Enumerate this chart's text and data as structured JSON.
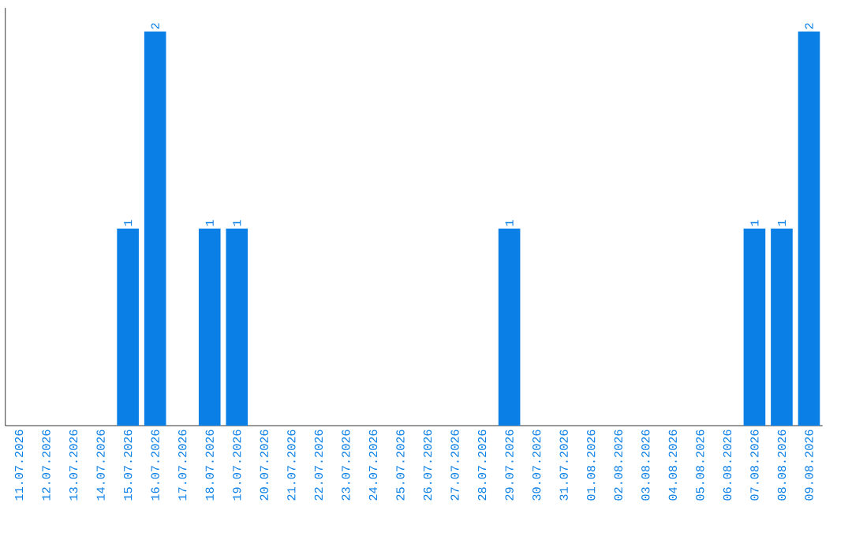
{
  "chart_data": {
    "type": "bar",
    "categories": [
      "11.07.2026",
      "12.07.2026",
      "13.07.2026",
      "14.07.2026",
      "15.07.2026",
      "16.07.2026",
      "17.07.2026",
      "18.07.2026",
      "19.07.2026",
      "20.07.2026",
      "21.07.2026",
      "22.07.2026",
      "23.07.2026",
      "24.07.2026",
      "25.07.2026",
      "26.07.2026",
      "27.07.2026",
      "28.07.2026",
      "29.07.2026",
      "30.07.2026",
      "31.07.2026",
      "01.08.2026",
      "02.08.2026",
      "03.08.2026",
      "04.08.2026",
      "05.08.2026",
      "06.08.2026",
      "07.08.2026",
      "08.08.2026",
      "09.08.2026"
    ],
    "values": [
      0,
      0,
      0,
      0,
      1,
      2,
      0,
      1,
      1,
      0,
      0,
      0,
      0,
      0,
      0,
      0,
      0,
      0,
      1,
      0,
      0,
      0,
      0,
      0,
      0,
      0,
      0,
      1,
      1,
      2
    ],
    "value_labels": [
      null,
      null,
      null,
      null,
      "1",
      "2",
      null,
      "1",
      "1",
      null,
      null,
      null,
      null,
      null,
      null,
      null,
      null,
      null,
      "1",
      null,
      null,
      null,
      null,
      null,
      null,
      null,
      null,
      "1",
      "1",
      "2"
    ],
    "color": "#0a7fe6"
  }
}
